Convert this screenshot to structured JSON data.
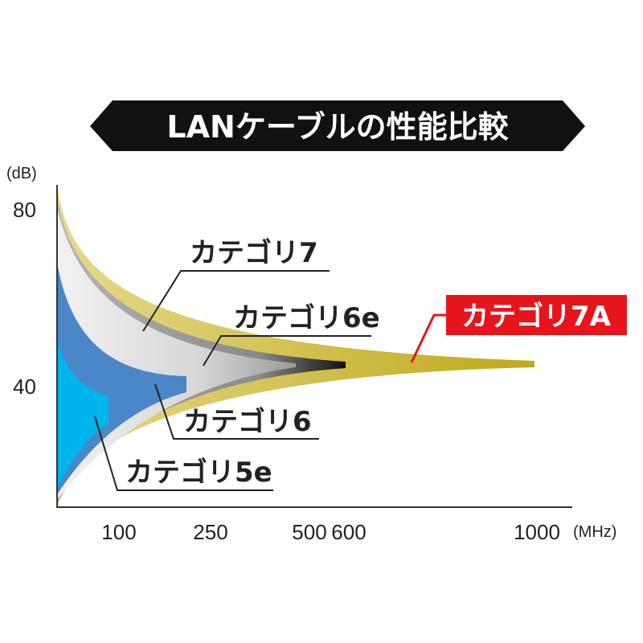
{
  "title": "LANケーブルの性能比較",
  "y_unit": "(dB)",
  "x_unit": "(MHz)",
  "y_ticks": [
    "80",
    "40"
  ],
  "x_ticks": [
    "100",
    "250",
    "500",
    "600",
    "1000"
  ],
  "labels": {
    "cat7": "カテゴリ7",
    "cat6e": "カテゴリ6e",
    "cat6": "カテゴリ6",
    "cat5e": "カテゴリ5e",
    "cat7a": "カテゴリ7A"
  },
  "colors": {
    "cat7a": "#c9b93a",
    "cat7": "#9a9a9a",
    "cat6e": "#e6e6e6",
    "cat6": "#4a86c8",
    "cat5e": "#00b4ec",
    "highlight": "#e8141c",
    "banner": "#111111"
  },
  "chart_data": {
    "type": "area",
    "xlabel": "(MHz)",
    "ylabel": "(dB)",
    "x_ticks": [
      100,
      250,
      500,
      600,
      1000
    ],
    "y_ticks": [
      80,
      40
    ],
    "series": [
      {
        "name": "カテゴリ5e",
        "max_frequency": 100
      },
      {
        "name": "カテゴリ6",
        "max_frequency": 250
      },
      {
        "name": "カテゴリ6e",
        "max_frequency": 500
      },
      {
        "name": "カテゴリ7",
        "max_frequency": 600
      },
      {
        "name": "カテゴリ7A",
        "max_frequency": 1000
      }
    ]
  }
}
